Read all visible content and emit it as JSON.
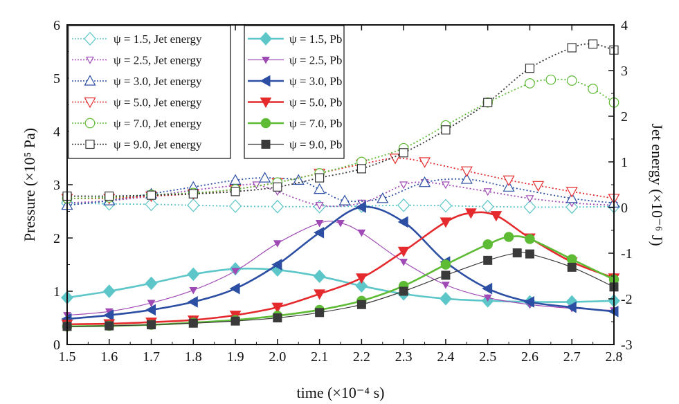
{
  "chart_data": {
    "type": "line",
    "xlabel": "time (×10⁻⁴ s)",
    "ylabel": "Pressure (×10⁵ Pa)",
    "y2label": "Jet energy (×10⁻⁶ J)",
    "xlim": [
      1.5,
      2.8
    ],
    "ylim": [
      0,
      6
    ],
    "y2lim": [
      -3,
      4
    ],
    "xticks": [
      "1.5",
      "1.6",
      "1.7",
      "1.8",
      "1.9",
      "2.0",
      "2.1",
      "2.2",
      "2.3",
      "2.4",
      "2.5",
      "2.6",
      "2.7",
      "2.8"
    ],
    "yticks": [
      "0",
      "1",
      "2",
      "3",
      "4",
      "5",
      "6"
    ],
    "y2ticks": [
      "-3",
      "-2",
      "-1",
      "0",
      "1",
      "2",
      "3",
      "4"
    ],
    "grid": false,
    "legend_placement": "top-left",
    "series": [
      {
        "name": "ψ = 1.5, Jet energy",
        "axis": "right",
        "style": "dotted",
        "marker": "diamond-open",
        "color": "#5cc6c8",
        "x": [
          1.5,
          1.6,
          1.7,
          1.8,
          1.9,
          2.0,
          2.1,
          2.2,
          2.3,
          2.4,
          2.5,
          2.6,
          2.7,
          2.8
        ],
        "y": [
          0.1,
          0.08,
          0.07,
          0.05,
          0.03,
          0.02,
          0.02,
          0.03,
          0.05,
          0.04,
          0.02,
          0.01,
          0.01,
          0.02
        ]
      },
      {
        "name": "ψ = 2.5, Jet energy",
        "axis": "right",
        "style": "dotted",
        "marker": "tri-down-open-small",
        "color": "#a04ab5",
        "x": [
          1.5,
          1.6,
          1.7,
          1.8,
          1.9,
          1.95,
          2.0,
          2.1,
          2.2,
          2.3,
          2.35,
          2.4,
          2.5,
          2.6,
          2.7,
          2.8
        ],
        "y": [
          0.1,
          0.15,
          0.25,
          0.38,
          0.48,
          0.5,
          0.35,
          0.05,
          0.1,
          0.5,
          0.55,
          0.5,
          0.35,
          0.2,
          0.1,
          0.05
        ]
      },
      {
        "name": "ψ = 3.0, Jet energy",
        "axis": "right",
        "style": "dotted",
        "marker": "tri-up-open",
        "color": "#2c4fa3",
        "x": [
          1.5,
          1.6,
          1.7,
          1.8,
          1.9,
          1.97,
          2.05,
          2.1,
          2.16,
          2.25,
          2.35,
          2.45,
          2.55,
          2.7,
          2.8
        ],
        "y": [
          0.05,
          0.15,
          0.3,
          0.45,
          0.6,
          0.65,
          0.6,
          0.4,
          0.15,
          0.2,
          0.55,
          0.62,
          0.45,
          0.2,
          0.1
        ]
      },
      {
        "name": "ψ = 5.0, Jet energy",
        "axis": "right",
        "style": "dotted",
        "marker": "tri-down-open",
        "color": "#e52a2d",
        "x": [
          1.5,
          1.6,
          1.7,
          1.8,
          1.9,
          2.0,
          2.1,
          2.2,
          2.28,
          2.35,
          2.45,
          2.55,
          2.62,
          2.7,
          2.8
        ],
        "y": [
          0.2,
          0.2,
          0.25,
          0.3,
          0.4,
          0.55,
          0.75,
          0.95,
          1.08,
          1.0,
          0.8,
          0.6,
          0.48,
          0.35,
          0.2
        ]
      },
      {
        "name": "ψ = 7.0, Jet energy",
        "axis": "right",
        "style": "dotted",
        "marker": "circle-open",
        "color": "#5dbb34",
        "x": [
          1.5,
          1.6,
          1.7,
          1.8,
          1.9,
          2.0,
          2.1,
          2.2,
          2.3,
          2.4,
          2.5,
          2.6,
          2.65,
          2.7,
          2.75,
          2.8
        ],
        "y": [
          0.2,
          0.22,
          0.28,
          0.32,
          0.4,
          0.55,
          0.75,
          1.0,
          1.3,
          1.8,
          2.3,
          2.72,
          2.8,
          2.78,
          2.6,
          2.3
        ]
      },
      {
        "name": "ψ = 9.0, Jet energy",
        "axis": "right",
        "style": "dotted",
        "marker": "square-open",
        "color": "#333333",
        "x": [
          1.5,
          1.6,
          1.7,
          1.8,
          1.9,
          2.0,
          2.1,
          2.2,
          2.3,
          2.4,
          2.5,
          2.6,
          2.7,
          2.75,
          2.8
        ],
        "y": [
          0.25,
          0.25,
          0.27,
          0.3,
          0.35,
          0.45,
          0.65,
          0.85,
          1.2,
          1.7,
          2.3,
          3.05,
          3.5,
          3.58,
          3.45
        ]
      },
      {
        "name": "ψ = 1.5, Pb",
        "axis": "left",
        "style": "solid",
        "marker": "diamond",
        "color": "#5cc6c8",
        "x": [
          1.5,
          1.6,
          1.7,
          1.8,
          1.9,
          2.0,
          2.1,
          2.2,
          2.3,
          2.4,
          2.5,
          2.6,
          2.7,
          2.8
        ],
        "y": [
          0.88,
          1.0,
          1.15,
          1.32,
          1.42,
          1.4,
          1.28,
          1.1,
          0.95,
          0.86,
          0.82,
          0.8,
          0.8,
          0.82
        ]
      },
      {
        "name": "ψ = 2.5, Pb",
        "axis": "left",
        "style": "solid",
        "marker": "tri-down-small",
        "color": "#a04ab5",
        "x": [
          1.5,
          1.6,
          1.7,
          1.8,
          1.9,
          2.0,
          2.1,
          2.15,
          2.2,
          2.3,
          2.4,
          2.5,
          2.6,
          2.7,
          2.8
        ],
        "y": [
          0.55,
          0.62,
          0.78,
          1.02,
          1.38,
          1.9,
          2.28,
          2.28,
          2.1,
          1.55,
          1.12,
          0.88,
          0.75,
          0.68,
          0.64
        ]
      },
      {
        "name": "ψ = 3.0, Pb",
        "axis": "left",
        "style": "solid",
        "marker": "tri-left",
        "color": "#2c4fa3",
        "x": [
          1.5,
          1.6,
          1.7,
          1.8,
          1.9,
          2.0,
          2.1,
          2.2,
          2.3,
          2.4,
          2.5,
          2.6,
          2.7,
          2.8
        ],
        "y": [
          0.48,
          0.55,
          0.65,
          0.8,
          1.05,
          1.5,
          2.1,
          2.58,
          2.3,
          1.55,
          1.05,
          0.8,
          0.7,
          0.62
        ]
      },
      {
        "name": "ψ = 5.0, Pb",
        "axis": "left",
        "style": "solid",
        "marker": "tri-down",
        "color": "#e52a2d",
        "x": [
          1.5,
          1.6,
          1.7,
          1.8,
          1.9,
          2.0,
          2.1,
          2.2,
          2.3,
          2.4,
          2.46,
          2.52,
          2.6,
          2.7,
          2.8
        ],
        "y": [
          0.38,
          0.39,
          0.42,
          0.46,
          0.55,
          0.7,
          0.95,
          1.25,
          1.75,
          2.3,
          2.47,
          2.42,
          2.0,
          1.55,
          1.25
        ]
      },
      {
        "name": "ψ = 7.0, Pb",
        "axis": "left",
        "style": "solid",
        "marker": "circle",
        "color": "#5dbb34",
        "x": [
          1.5,
          1.6,
          1.7,
          1.8,
          1.9,
          2.0,
          2.1,
          2.2,
          2.3,
          2.4,
          2.5,
          2.55,
          2.6,
          2.7,
          2.8
        ],
        "y": [
          0.34,
          0.35,
          0.37,
          0.41,
          0.46,
          0.54,
          0.65,
          0.82,
          1.1,
          1.5,
          1.88,
          2.02,
          1.98,
          1.6,
          1.22
        ]
      },
      {
        "name": "ψ = 9.0, Pb",
        "axis": "left",
        "style": "solid",
        "marker": "square",
        "color": "#3a3a3a",
        "x": [
          1.5,
          1.6,
          1.7,
          1.8,
          1.9,
          2.0,
          2.1,
          2.2,
          2.3,
          2.4,
          2.5,
          2.57,
          2.6,
          2.7,
          2.8
        ],
        "y": [
          0.34,
          0.35,
          0.37,
          0.4,
          0.44,
          0.5,
          0.6,
          0.75,
          1.0,
          1.3,
          1.58,
          1.72,
          1.7,
          1.45,
          1.08
        ]
      }
    ]
  }
}
